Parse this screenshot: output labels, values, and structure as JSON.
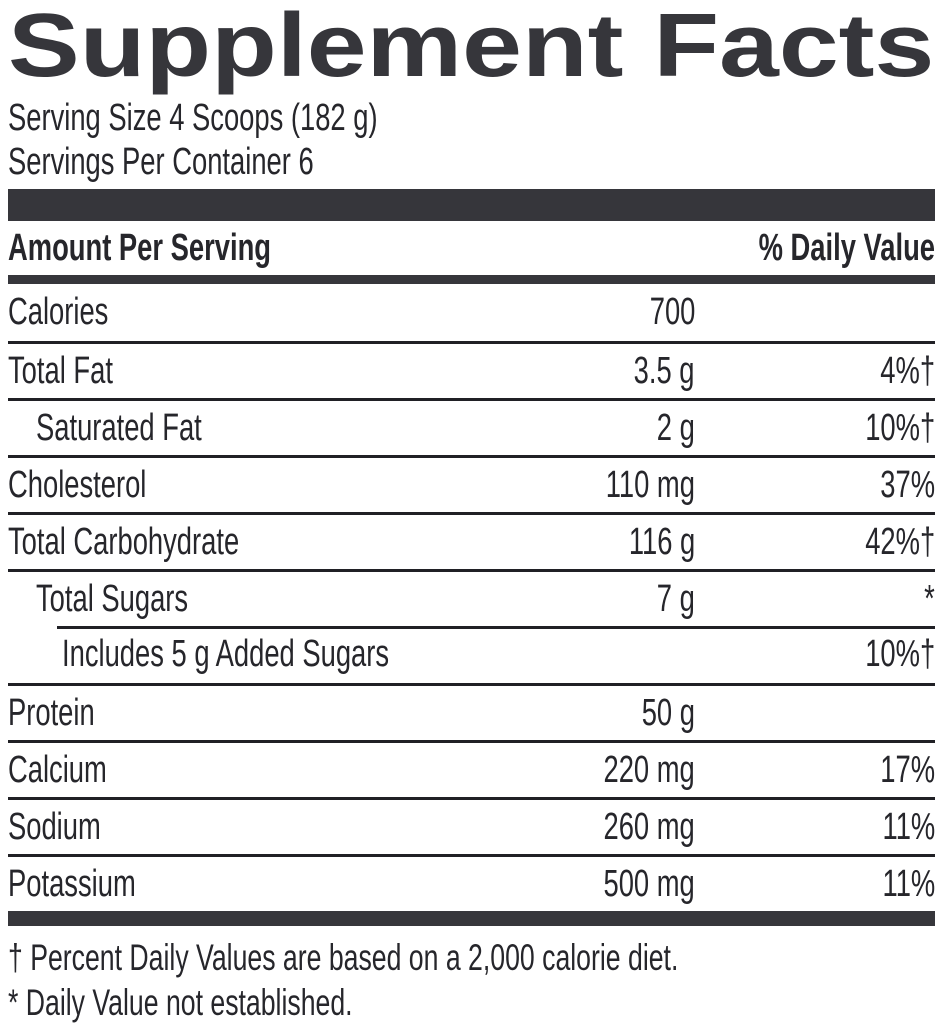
{
  "label": {
    "title": "Supplement Facts",
    "serving_size": "Serving Size 4 Scoops (182 g)",
    "servings_per_container": "Servings Per Container 6",
    "header": {
      "amount_per_serving": "Amount Per Serving",
      "daily_value": "% Daily Value"
    },
    "rows": [
      {
        "name": "Calories",
        "amount": "700",
        "dv": ""
      },
      {
        "name": "Total Fat",
        "amount": "3.5 g",
        "dv": "4%†"
      },
      {
        "name": "Saturated Fat",
        "amount": "2 g",
        "dv": "10%†"
      },
      {
        "name": "Cholesterol",
        "amount": "110 mg",
        "dv": "37%"
      },
      {
        "name": "Total Carbohydrate",
        "amount": "116 g",
        "dv": "42%†"
      },
      {
        "name": "Total Sugars",
        "amount": "7 g",
        "dv": "*"
      },
      {
        "name": "Includes 5 g Added Sugars",
        "amount": "",
        "dv": "10%†"
      },
      {
        "name": "Protein",
        "amount": "50 g",
        "dv": ""
      },
      {
        "name": "Calcium",
        "amount": "220 mg",
        "dv": "17%"
      },
      {
        "name": "Sodium",
        "amount": "260 mg",
        "dv": "11%"
      },
      {
        "name": "Potassium",
        "amount": "500 mg",
        "dv": "11%"
      }
    ],
    "footnotes": [
      "† Percent Daily Values are based on a 2,000 calorie diet.",
      "* Daily Value not established."
    ],
    "colors": {
      "text": "#26262b",
      "rule": "#202025",
      "bar": "#36363b",
      "background": "#ffffff"
    }
  }
}
